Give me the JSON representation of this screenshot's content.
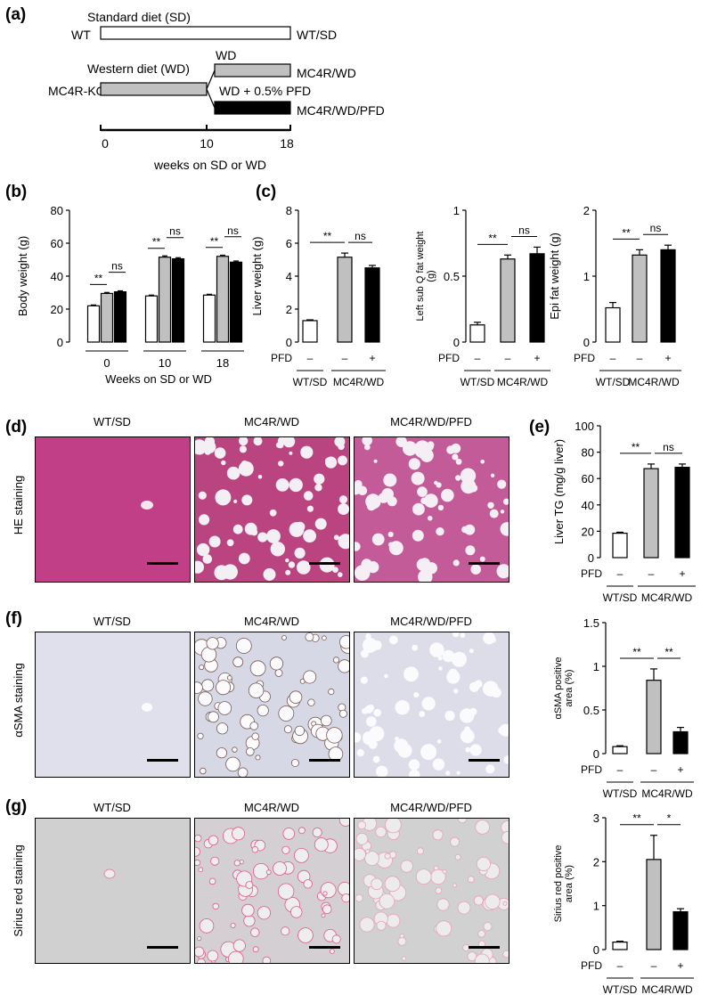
{
  "panels": {
    "a": "(a)",
    "b": "(b)",
    "c": "(c)",
    "d": "(d)",
    "e": "(e)",
    "f": "(f)",
    "g": "(g)"
  },
  "scheme": {
    "standard_diet": "Standard diet (SD)",
    "wt": "WT",
    "wt_sd": "WT/SD",
    "western_diet": "Western diet (WD)",
    "mc4r_ko": "MC4R-KO",
    "wd": "WD",
    "mc4r_wd": "MC4R/WD",
    "wd_pfd": "WD + 0.5% PFD",
    "mc4r_wd_pfd": "MC4R/WD/PFD",
    "t0": "0",
    "t10": "10",
    "t18": "18",
    "xlabel": "weeks on SD or WD"
  },
  "common": {
    "pfd": "PFD",
    "minus": "–",
    "plus": "+",
    "grp_wt": "WT/SD",
    "grp_mc4r": "MC4R/WD",
    "sig2": "**",
    "sig1": "*",
    "ns": "ns"
  },
  "micro_labels": {
    "wt_sd": "WT/SD",
    "mc4r_wd": "MC4R/WD",
    "mc4r_wd_pfd": "MC4R/WD/PFD",
    "he": "HE staining",
    "asma": "αSMA staining",
    "sirius": "Sirius red staining"
  },
  "colors": {
    "wt_sd": "#ffffff",
    "mc4r_wd": "#c0c0c0",
    "mc4r_wd_pfd": "#000000",
    "he": "#c43c8c",
    "asma": "#e3e4ee",
    "sirius": "#d2d2d2"
  },
  "chart_data": [
    {
      "id": "body",
      "type": "bar",
      "ylabel": "Body weight (g)",
      "xlabel": "Weeks on SD or WD",
      "ylim": [
        0,
        80
      ],
      "yticks": [
        "0",
        "20",
        "40",
        "60",
        "80"
      ],
      "groups": [
        "0",
        "10",
        "18"
      ],
      "series": [
        {
          "name": "WT/SD",
          "values": [
            22,
            28,
            28.5
          ],
          "err": [
            0.5,
            0.5,
            0.5
          ]
        },
        {
          "name": "MC4R/WD",
          "values": [
            29.5,
            51.5,
            52
          ],
          "err": [
            0.6,
            0.8,
            0.7
          ]
        },
        {
          "name": "MC4R/WD/PFD",
          "values": [
            30.5,
            50.5,
            48.5
          ],
          "err": [
            0.6,
            0.7,
            0.7
          ]
        }
      ],
      "annotations": [
        "**",
        "ns",
        "**",
        "ns",
        "**",
        "ns"
      ]
    },
    {
      "id": "liver",
      "type": "bar",
      "ylabel": "Liver weight (g)",
      "ylim": [
        0,
        8
      ],
      "yticks": [
        "0",
        "2",
        "4",
        "6",
        "8"
      ],
      "values": [
        1.3,
        5.15,
        4.5
      ],
      "err": [
        0.05,
        0.25,
        0.15
      ],
      "annotations": [
        "**",
        "ns"
      ]
    },
    {
      "id": "subq",
      "type": "bar",
      "ylabel": "Left sub Q fat weight (g)",
      "ylim": [
        0,
        1
      ],
      "yticks": [
        "0",
        "0.5",
        "1"
      ],
      "values": [
        0.13,
        0.63,
        0.67
      ],
      "err": [
        0.02,
        0.03,
        0.05
      ],
      "annotations": [
        "**",
        "ns"
      ]
    },
    {
      "id": "epi",
      "type": "bar",
      "ylabel": "Epi fat weight (g)",
      "ylim": [
        0,
        2
      ],
      "yticks": [
        "0",
        "1",
        "2"
      ],
      "values": [
        0.52,
        1.32,
        1.4
      ],
      "err": [
        0.08,
        0.08,
        0.07
      ],
      "annotations": [
        "**",
        "ns"
      ]
    },
    {
      "id": "tg",
      "type": "bar",
      "ylabel": "Liver TG (mg/g liver)",
      "ylim": [
        0,
        100
      ],
      "yticks": [
        "0",
        "20",
        "40",
        "60",
        "80",
        "100"
      ],
      "values": [
        18.5,
        67.5,
        68.5
      ],
      "err": [
        0.8,
        3.5,
        2.5
      ],
      "annotations": [
        "**",
        "ns"
      ]
    },
    {
      "id": "asma",
      "type": "bar",
      "ylabel": "αSMA positive area (%)",
      "ylim": [
        0,
        1.5
      ],
      "yticks": [
        "0",
        "0.5",
        "1",
        "1.5"
      ],
      "values": [
        0.08,
        0.84,
        0.25
      ],
      "err": [
        0.01,
        0.13,
        0.05
      ],
      "annotations": [
        "**",
        "**"
      ]
    },
    {
      "id": "sirius",
      "type": "bar",
      "ylabel": "Sirius red positive area (%)",
      "ylim": [
        0,
        3
      ],
      "yticks": [
        "0",
        "1",
        "2",
        "3"
      ],
      "values": [
        0.17,
        2.05,
        0.86
      ],
      "err": [
        0.02,
        0.55,
        0.07
      ],
      "annotations": [
        "**",
        "*"
      ]
    }
  ]
}
